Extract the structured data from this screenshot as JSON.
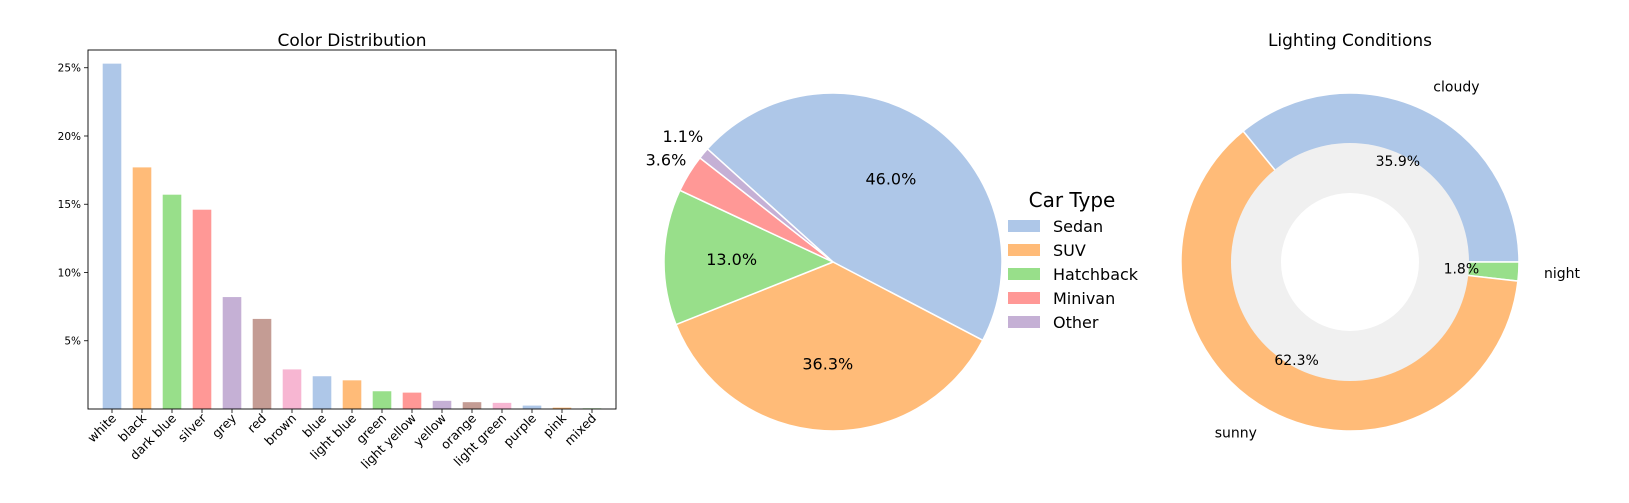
{
  "chart_data": [
    {
      "type": "bar",
      "title": "Color Distribution",
      "categories": [
        "white",
        "black",
        "dark blue",
        "silver",
        "grey",
        "red",
        "brown",
        "blue",
        "light blue",
        "green",
        "light yellow",
        "yellow",
        "orange",
        "light green",
        "purple",
        "pink",
        "mixed"
      ],
      "values": [
        25.3,
        17.7,
        15.7,
        14.6,
        8.2,
        6.6,
        2.9,
        2.4,
        2.1,
        1.3,
        1.2,
        0.6,
        0.5,
        0.45,
        0.25,
        0.1,
        0.05
      ],
      "ylim": [
        0,
        26.3
      ],
      "yticks": [
        5,
        10,
        15,
        20,
        25
      ],
      "ytick_labels": [
        "5%",
        "10%",
        "15%",
        "20%",
        "25%"
      ],
      "colors": [
        "#aec7e8",
        "#ffbb78",
        "#98df8a",
        "#ff9896",
        "#c5b0d5",
        "#c49c94",
        "#f7b6d2",
        "#aec7e8",
        "#ffbb78",
        "#98df8a",
        "#ff9896",
        "#c5b0d5",
        "#c49c94",
        "#f7b6d2",
        "#aec7e8",
        "#ffbb78",
        "#98df8a"
      ]
    },
    {
      "type": "pie",
      "title": "",
      "labels": [
        "Sedan",
        "SUV",
        "Hatchback",
        "Minivan",
        "Other"
      ],
      "values": [
        46.0,
        36.3,
        13.0,
        3.6,
        1.1
      ],
      "value_labels": [
        "46.0%",
        "36.3%",
        "13.0%",
        "3.6%",
        "1.1%"
      ],
      "colors": [
        "#aec7e8",
        "#ffbb78",
        "#98df8a",
        "#ff9896",
        "#c5b0d5"
      ],
      "legend_title": "Car Type",
      "legend_position": "right"
    },
    {
      "type": "pie",
      "title": "Lighting Conditions",
      "style": "donut",
      "labels": [
        "cloudy",
        "night",
        "sunny"
      ],
      "values": [
        35.9,
        1.8,
        62.3
      ],
      "value_labels": [
        "35.9%",
        "1.8%",
        "62.3%"
      ],
      "colors": [
        "#aec7e8",
        "#98df8a",
        "#ffbb78"
      ],
      "inner_color": "#f0f0f0"
    }
  ]
}
